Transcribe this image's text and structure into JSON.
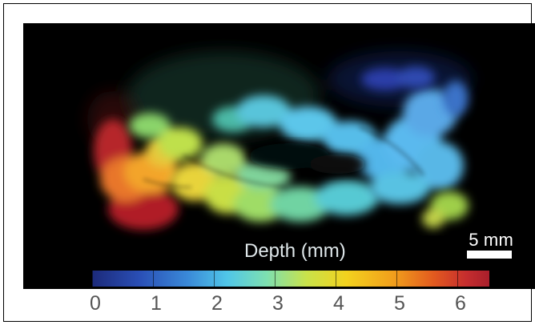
{
  "figure": {
    "colorbar_title": "Depth (mm)",
    "scale_bar_label": "5 mm",
    "tick_labels": [
      "0",
      "1",
      "2",
      "3",
      "4",
      "5",
      "6"
    ],
    "colorbar_colors": [
      "#1c2a7a",
      "#3a89d8",
      "#50c6e8",
      "#c9e24a",
      "#f2d21e",
      "#e25a1f",
      "#a91f2c"
    ]
  }
}
